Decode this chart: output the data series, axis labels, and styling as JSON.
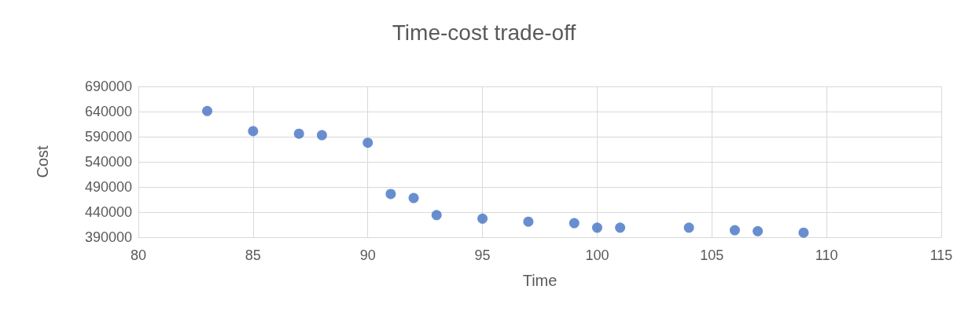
{
  "chart_data": {
    "type": "scatter",
    "title": "Time-cost trade-off",
    "xlabel": "Time",
    "ylabel": "Cost",
    "x": [
      83,
      85,
      87,
      88,
      90,
      91,
      92,
      93,
      95,
      97,
      99,
      100,
      101,
      104,
      106,
      107,
      109
    ],
    "series": [
      {
        "color": "#4472c4",
        "values": [
          641000,
          601000,
          596000,
          593000,
          578000,
          476000,
          468000,
          434000,
          427000,
          421000,
          418000,
          409000,
          409000,
          409000,
          404000,
          402000,
          399000
        ]
      }
    ],
    "xlim": [
      80,
      115
    ],
    "xticks": [
      80,
      85,
      90,
      95,
      100,
      105,
      110,
      115
    ],
    "ylim": [
      390000,
      690000
    ],
    "yticks": [
      390000,
      440000,
      490000,
      540000,
      590000,
      640000,
      690000
    ],
    "grid": true,
    "marker": "circle"
  }
}
